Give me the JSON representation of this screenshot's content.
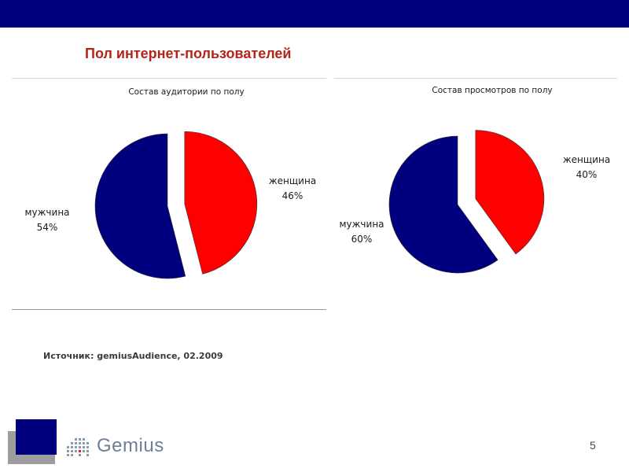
{
  "slide": {
    "title": "Пол интернет-пользователей",
    "source": "Источник: gemiusAudience, 02.2009",
    "page_number": "5",
    "logo_text": "Gemius",
    "colors": {
      "top_bar": "#00007f",
      "title": "#b3241a",
      "female": "#ff0000",
      "male": "#00007f"
    }
  },
  "chart_data": [
    {
      "type": "pie",
      "title": "Состав аудитории по полу",
      "slices": [
        {
          "label": "женщина",
          "value": 46,
          "value_label": "46%",
          "color": "#ff0000",
          "exploded": true
        },
        {
          "label": "мужчина",
          "value": 54,
          "value_label": "54%",
          "color": "#00007f",
          "exploded": false
        }
      ]
    },
    {
      "type": "pie",
      "title": "Состав просмотров по полу",
      "slices": [
        {
          "label": "женщина",
          "value": 40,
          "value_label": "40%",
          "color": "#ff0000",
          "exploded": true
        },
        {
          "label": "мужчина",
          "value": 60,
          "value_label": "60%",
          "color": "#00007f",
          "exploded": false
        }
      ]
    }
  ]
}
